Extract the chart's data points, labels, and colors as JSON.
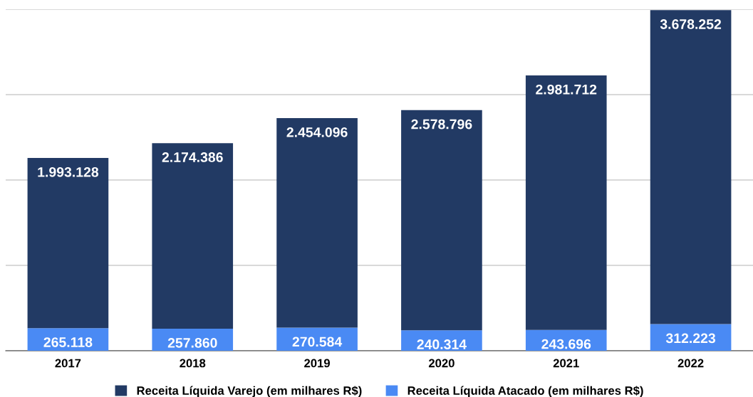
{
  "chart_data": {
    "type": "bar",
    "stacked": true,
    "categories": [
      "2017",
      "2018",
      "2019",
      "2020",
      "2021",
      "2022"
    ],
    "series": [
      {
        "name": "Receita Líquida Atacado (em milhares R$)",
        "color": "#4a8af4",
        "values": [
          265118,
          257860,
          270584,
          240314,
          243696,
          312223
        ],
        "value_labels": [
          "265.118",
          "257.860",
          "270.584",
          "240.314",
          "243.696",
          "312.223"
        ]
      },
      {
        "name": "Receita Líquida Varejo (em milhares R$)",
        "color": "#223a64",
        "values": [
          1993128,
          2174386,
          2454096,
          2578796,
          2981712,
          3678252
        ],
        "value_labels": [
          "1.993.128",
          "2.174.386",
          "2.454.096",
          "2.578.796",
          "2.981.712",
          "3.678.252"
        ]
      }
    ],
    "ylim": [
      0,
      4000000
    ],
    "yticks": [
      {
        "value": 0,
        "label": null
      },
      {
        "value": 1000000,
        "label": null
      },
      {
        "value": 2000000,
        "label": null
      },
      {
        "value": 3000000,
        "label": null
      },
      {
        "value": 4000000,
        "label": null
      }
    ],
    "grid": "y",
    "tick_labels": "x",
    "legend": "bottom"
  }
}
